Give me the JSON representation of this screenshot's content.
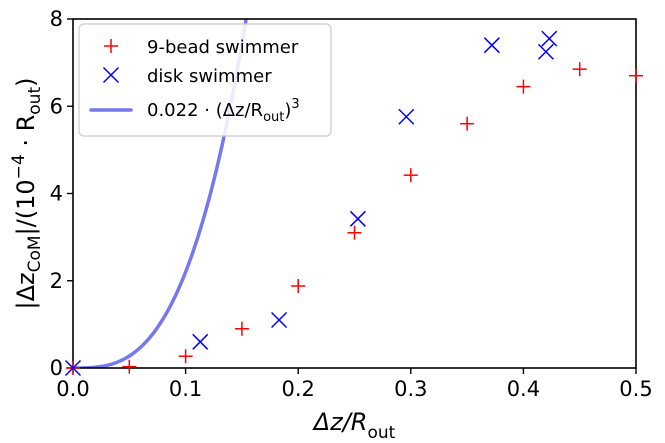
{
  "chart_data": {
    "type": "scatter",
    "xlim": [
      0.0,
      0.5
    ],
    "ylim": [
      0,
      8
    ],
    "x_ticks": [
      0.0,
      0.1,
      0.2,
      0.3,
      0.4,
      0.5
    ],
    "x_tick_labels": [
      "0.0",
      "0.1",
      "0.2",
      "0.3",
      "0.4",
      "0.5"
    ],
    "y_ticks": [
      0,
      2,
      4,
      6,
      8
    ],
    "y_tick_labels": [
      "0",
      "2",
      "4",
      "6",
      "8"
    ],
    "xlabel": {
      "main": "Δz/R",
      "sub": "out"
    },
    "ylabel": {
      "pre": "|Δz",
      "sub1": "CoM",
      "mid": "|/(10",
      "sup": "−4",
      "dot": " · R",
      "sub2": "out",
      "post": ")"
    },
    "legend_position": "top-left",
    "series": [
      {
        "name": "9-bead swimmer",
        "marker": "plus",
        "color": "#ff0000",
        "x": [
          0.0,
          0.05,
          0.1,
          0.15,
          0.2,
          0.25,
          0.3,
          0.35,
          0.4,
          0.45,
          0.5
        ],
        "y": [
          0.0,
          0.03,
          0.27,
          0.9,
          1.88,
          3.1,
          4.42,
          5.6,
          6.45,
          6.85,
          6.7
        ]
      },
      {
        "name": "disk swimmer",
        "marker": "x",
        "color": "#0000ff",
        "x": [
          0.0,
          0.113,
          0.183,
          0.253,
          0.296,
          0.372,
          0.42,
          0.423
        ],
        "y": [
          0.0,
          0.6,
          1.1,
          3.42,
          5.76,
          7.4,
          7.25,
          7.55
        ]
      },
      {
        "name": "0.022 · (Δz/R_out)^3",
        "type": "line",
        "color": "#7777ee",
        "label_parts": {
          "pre": "0.022 · (Δz/R",
          "sub": "out",
          "post": ")",
          "sup": "3"
        },
        "coefficient": 0.022,
        "exponent": 3,
        "x_scale": 0.01
      }
    ]
  }
}
